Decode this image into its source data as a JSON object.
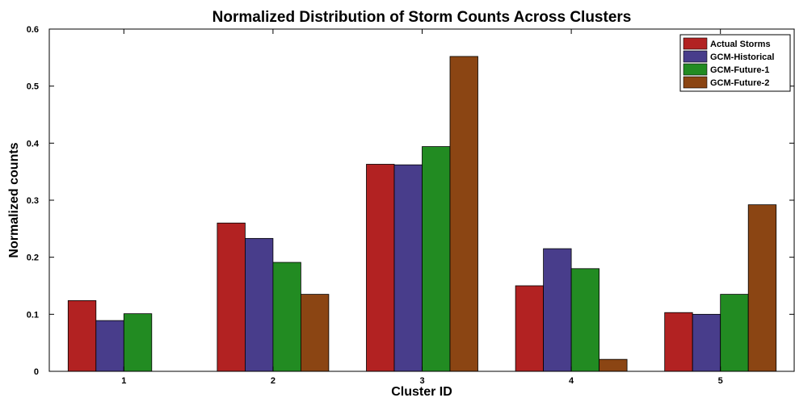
{
  "chart_data": {
    "type": "bar",
    "title": "Normalized Distribution of Storm Counts Across Clusters",
    "xlabel": "Cluster ID",
    "ylabel": "Normalized counts",
    "categories": [
      "1",
      "2",
      "3",
      "4",
      "5"
    ],
    "ylim": [
      0,
      0.6
    ],
    "yticks": [
      0,
      0.1,
      0.2,
      0.3,
      0.4,
      0.5,
      0.6
    ],
    "ytick_labels": [
      "0",
      "0.1",
      "0.2",
      "0.3",
      "0.4",
      "0.5",
      "0.6"
    ],
    "grid": false,
    "legend_position": "top-right",
    "series": [
      {
        "name": "Actual Storms",
        "color": "#b22222",
        "values": [
          0.124,
          0.26,
          0.363,
          0.15,
          0.103
        ]
      },
      {
        "name": "GCM-Historical",
        "color": "#483d8b",
        "values": [
          0.089,
          0.233,
          0.362,
          0.215,
          0.1
        ]
      },
      {
        "name": "GCM-Future-1",
        "color": "#228b22",
        "values": [
          0.101,
          0.191,
          0.394,
          0.18,
          0.135
        ]
      },
      {
        "name": "GCM-Future-2",
        "color": "#8b4513",
        "values": [
          0,
          0.135,
          0.552,
          0.021,
          0.292
        ]
      }
    ]
  }
}
